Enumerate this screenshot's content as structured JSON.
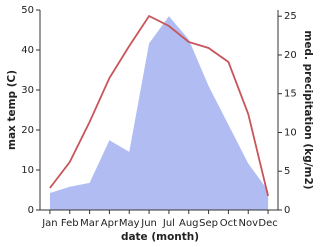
{
  "chart_data": {
    "type": "line",
    "x_label": "date (month)",
    "y_label": "max temp (C)",
    "y2_label": "med. precipitation (kg/m2)",
    "categories": [
      "Jan",
      "Feb",
      "Mar",
      "Apr",
      "May",
      "Jun",
      "Jul",
      "Aug",
      "Sep",
      "Oct",
      "Nov",
      "Dec"
    ],
    "series": [
      {
        "name": "med. precipitation",
        "color": "#b1bdf2",
        "axis": "y2",
        "values": [
          2.2,
          3,
          3.5,
          9,
          7.5,
          21.5,
          25,
          22,
          16,
          11,
          6,
          2.5
        ]
      },
      {
        "name": "max temp",
        "color": "#c8555a",
        "values": [
          5.5,
          12,
          22,
          33,
          41,
          48.5,
          46,
          42,
          40.5,
          37,
          24,
          3.5
        ]
      }
    ],
    "ylim": [
      0,
      50
    ],
    "yticks": [
      0,
      10,
      20,
      30,
      40,
      50
    ],
    "y2lim": [
      0,
      25.8
    ],
    "y2ticks": [
      0,
      5,
      10,
      15,
      20,
      25
    ]
  }
}
